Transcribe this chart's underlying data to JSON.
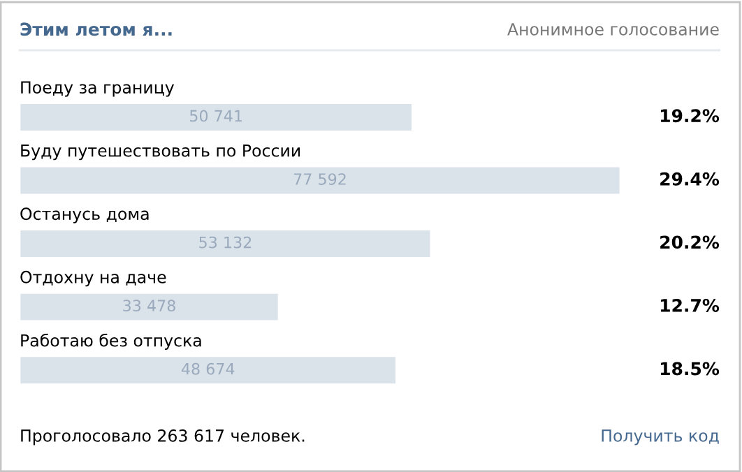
{
  "chart_data": {
    "type": "bar",
    "orientation": "horizontal",
    "title": "Этим летом я...",
    "subtitle": "Анонимное голосование",
    "categories": [
      "Поеду за границу",
      "Буду путешествовать по России",
      "Останусь дома",
      "Отдохну на даче",
      "Работаю без отпуска"
    ],
    "values": [
      50741,
      77592,
      53132,
      33478,
      48674
    ],
    "value_labels": [
      "50 741",
      "77 592",
      "53 132",
      "33 478",
      "48 674"
    ],
    "color": "#dae2ea",
    "xlim": [
      0,
      77592
    ],
    "annotations": [
      "19.2%",
      "29.4%",
      "20.2%",
      "12.7%",
      "18.5%",
      "Проголосовало 263 617 человек.",
      "Получить код"
    ]
  }
}
